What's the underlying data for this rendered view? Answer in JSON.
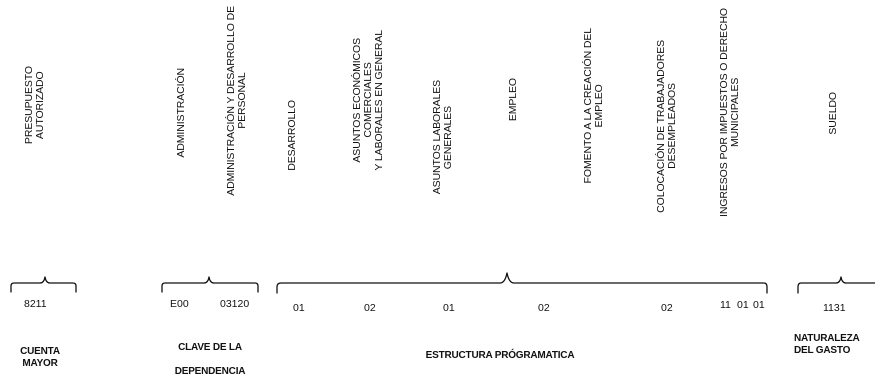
{
  "column_headers": [
    "PRESUPUESTO\nAUTORIZADO",
    "ADMINISTRACIÓN",
    "ADMINISTRACIÓN Y DESARROLLO DE\nPERSONAL",
    "DESARROLLO",
    "ASUNTOS ECONÓMICOS\nCOMERCIALES\nY LABORALES EN GENERAL",
    "ASUNTOS LABORALES\nGENERALES",
    "EMPLEO",
    "FOMENTO A LA CREACIÓN DEL\nEMPLEO",
    "COLOCACIÓN DE TRABAJADORES\nDESEMPLEADOS",
    "INGRESOS POR IMPUESTOS O DERECHO\nMUNICIPALES",
    "SUELDO"
  ],
  "codes": [
    "8211",
    "E00",
    "03120",
    "01",
    "02",
    "01",
    "02",
    "02",
    "11",
    "01",
    "01",
    "1131"
  ],
  "groups": {
    "cuenta_mayor": "CUENTA\nMAYOR",
    "clave_dependencia_line1": "CLAVE DE LA",
    "clave_dependencia_line2": "DEPENDENCIA",
    "estructura": "ESTRUCTURA PRÓGRAMATICA",
    "naturaleza": "NATURALEZA\nDEL GASTO"
  }
}
